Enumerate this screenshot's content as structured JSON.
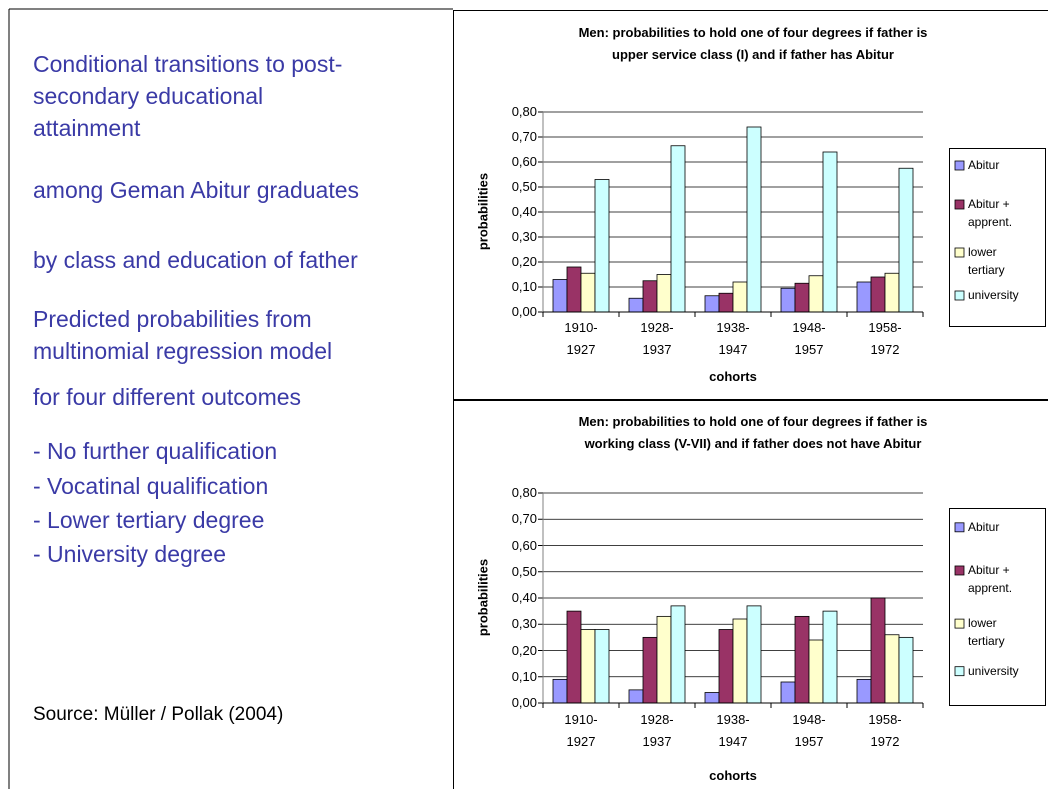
{
  "slide_text": {
    "paragraphs": [
      "Conditional transitions to post-\nsecondary educational\nattainment",
      "among Geman Abitur graduates",
      "by class and education of father",
      "Predicted probabilities from\nmultinomial regression model",
      "for four different outcomes"
    ],
    "list": [
      "- No further qualification",
      "- Vocatinal qualification",
      "- Lower tertiary degree",
      "- University degree"
    ],
    "source": "Source: Müller / Pollak  (2004)"
  },
  "chart_data": [
    {
      "type": "bar",
      "title": "Men: probabilities to hold one of four degrees if father is\nupper service class (I) and if father has Abitur",
      "y_label": "probabilities",
      "x_label": "cohorts",
      "categories": [
        "1910-\n1927",
        "1928-\n1937",
        "1938-\n1947",
        "1948-\n1957",
        "1958-\n1972"
      ],
      "series": [
        {
          "name": "Abitur",
          "color": "#9999ff",
          "values": [
            0.13,
            0.055,
            0.065,
            0.095,
            0.12
          ]
        },
        {
          "name": "Abitur +\napprent.",
          "color": "#993366",
          "values": [
            0.18,
            0.125,
            0.075,
            0.115,
            0.14
          ]
        },
        {
          "name": "lower\ntertiary",
          "color": "#ffffcc",
          "values": [
            0.155,
            0.15,
            0.12,
            0.145,
            0.155
          ]
        },
        {
          "name": "university",
          "color": "#ccffff",
          "values": [
            0.53,
            0.665,
            0.74,
            0.64,
            0.575
          ]
        }
      ],
      "ylim": [
        0,
        0.8
      ],
      "yticks": [
        {
          "value": 0,
          "label": "0,00"
        },
        {
          "value": 0.1,
          "label": "0,10"
        },
        {
          "value": 0.2,
          "label": "0,20"
        },
        {
          "value": 0.3,
          "label": "0,30"
        },
        {
          "value": 0.4,
          "label": "0,40"
        },
        {
          "value": 0.5,
          "label": "0,50"
        },
        {
          "value": 0.6,
          "label": "0,60"
        },
        {
          "value": 0.7,
          "label": "0,70"
        },
        {
          "value": 0.8,
          "label": "0,80"
        }
      ],
      "grid": true,
      "legend": "right"
    },
    {
      "type": "bar",
      "title": "Men: probabilities to hold one of four degrees if father is\nworking class (V-VII) and if father does not have Abitur",
      "y_label": "probabilities",
      "x_label": "cohorts",
      "categories": [
        "1910-\n1927",
        "1928-\n1937",
        "1938-\n1947",
        "1948-\n1957",
        "1958-\n1972"
      ],
      "series": [
        {
          "name": "Abitur",
          "color": "#9999ff",
          "values": [
            0.09,
            0.05,
            0.04,
            0.08,
            0.09
          ]
        },
        {
          "name": "Abitur +\napprent.",
          "color": "#993366",
          "values": [
            0.35,
            0.25,
            0.28,
            0.33,
            0.4
          ]
        },
        {
          "name": "lower\ntertiary",
          "color": "#ffffcc",
          "values": [
            0.28,
            0.33,
            0.32,
            0.24,
            0.26
          ]
        },
        {
          "name": "university",
          "color": "#ccffff",
          "values": [
            0.28,
            0.37,
            0.37,
            0.35,
            0.25
          ]
        }
      ],
      "ylim": [
        0,
        0.8
      ],
      "yticks": [
        {
          "value": 0,
          "label": "0,00"
        },
        {
          "value": 0.1,
          "label": "0,10"
        },
        {
          "value": 0.2,
          "label": "0,20"
        },
        {
          "value": 0.3,
          "label": "0,30"
        },
        {
          "value": 0.4,
          "label": "0,40"
        },
        {
          "value": 0.5,
          "label": "0,50"
        },
        {
          "value": 0.6,
          "label": "0,60"
        },
        {
          "value": 0.7,
          "label": "0,70"
        },
        {
          "value": 0.8,
          "label": "0,80"
        }
      ],
      "grid": true,
      "legend": "right"
    }
  ]
}
